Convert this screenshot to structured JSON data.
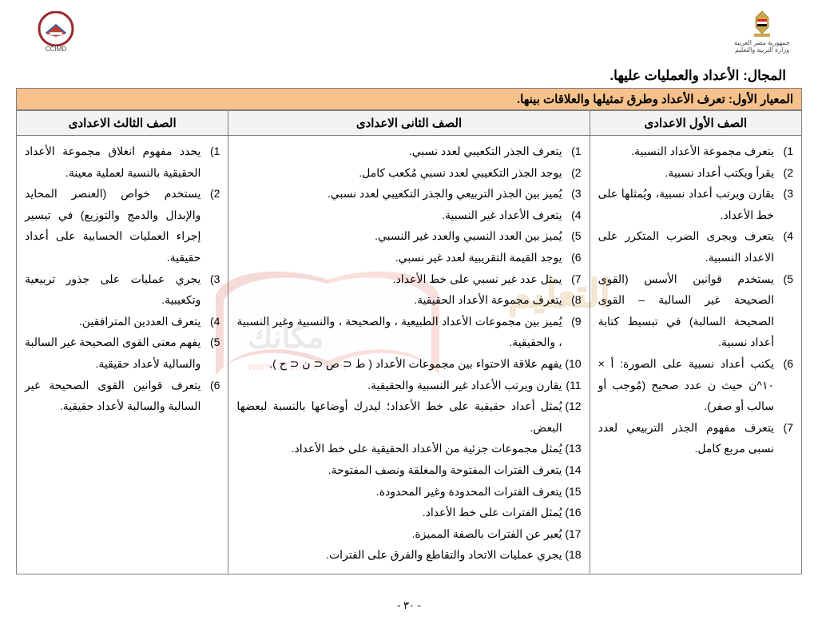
{
  "header": {
    "right_caption": "جمهورية مصر العربية\nوزارة التربية والتعليم",
    "left_caption": "CCIMD"
  },
  "domain_title": "المجال: الأعداد والعمليات عليها.",
  "standard_title": "المعيار الأول: تعرف الأعداد وطرق تمثيلها والعلاقات بينها.",
  "columns": {
    "c1": "الصف الأول الاعدادى",
    "c2": "الصف الثانى الاعدادى",
    "c3": "الصف الثالث الاعدادى"
  },
  "col1_items": [
    "يتعرف مجموعة الأعداد النسبية.",
    "يقرأ ويكتب أعداد نسبية.",
    "يقارن ويرتب أعداد نسبية، ويُمثلها على خط الأعداد.",
    "يتعرف ويجرى الضرب المتكرر على الاعداد النسبية.",
    "يستخدم قوانين الأسس (القوى الصحيحة غير السالبة – القوى الصحيحة السالبة) في تبسيط كتابة أعداد نسبية.",
    "يكتب أعداد نسبية على الصورة: أ × ١٠^ن حيث ن عدد صحيح (مُوجب أو سالب أو صفر).",
    "يتعرف مفهوم الجذر التربيعي لعدد نسبى مربع كامل."
  ],
  "col2_items": [
    "يتعرف الجذر التكعيبي لعدد نسبي.",
    "يوجد الجذر التكعيبي لعدد نسبي مُكعب كامل.",
    "يُميز بين الجذر التربيعي والجذر التكعيبي لعدد نسبي.",
    "يتعرف الأعداد غير النسبية.",
    "يُميز بين العدد النسبي والعدد غير النسبي.",
    "يوجد القيمة التقريبية لعدد غير نسبي.",
    "يمثل عدد غير نسبي على خط الأعداد.",
    "يتعرف مجموعة الأعداد الحقيقية.",
    "يُميز بين مجموعات الأعداد الطبيعية ، والصحيحة ، والنسبية وغير النسبية ، والحقيقية.",
    "يفهم علاقة الاحتواء بين مجموعات الأعداد ( ط ⊂ ص ⊂ ن ⊂ ح ).",
    "يقارن ويرتب الأعداد غير النسبية والحقيقية.",
    "يُمثل أعداد حقيقية على خط الأعداد؛ ليدرك أوضاعها بالنسبة لبعضها البعض.",
    "يُمثل مجموعات جزئية من الأعداد الحقيقية على خط الأعداد.",
    "يتعرف الفترات المفتوحة والمغلقة ونصف المفتوحة.",
    "يتعرف الفترات المحدودة وغير المحدودة.",
    "يُمثل الفترات على خط الأعداد.",
    "يُعبر عن الفترات بالصفة المميزة.",
    "يجري عمليات الاتحاد والتقاطع والفرق على الفترات."
  ],
  "col3_items": [
    "يحدد مفهوم انغلاق مجموعة الأعداد الحقيقية بالنسبة لعملية معينة.",
    "يستخدم خواص (العنصر المحايد والإبدال والدمج والتوزيع) في تيسير إجراء العمليات الحسابية على أعداد حقيقية.",
    "يجري عمليات على جذور تربيعية وتكعيبية.",
    "يتعرف العددين المترافقين.",
    "يفهم معنى القوى الصحيحة غير السالبة والسالبة لأعداد حقيقية.",
    "يتعرف قوانين القوى الصحيحة غير السالبة والسالبة لأعداد حقيقية."
  ],
  "page_number": "- ٣٠ -",
  "colors": {
    "standard_bg": "#f6c18a",
    "header_bg": "#f2f2f2",
    "border": "#808080"
  },
  "col_widths": {
    "c1": "27%",
    "c2": "46%",
    "c3": "27%"
  }
}
